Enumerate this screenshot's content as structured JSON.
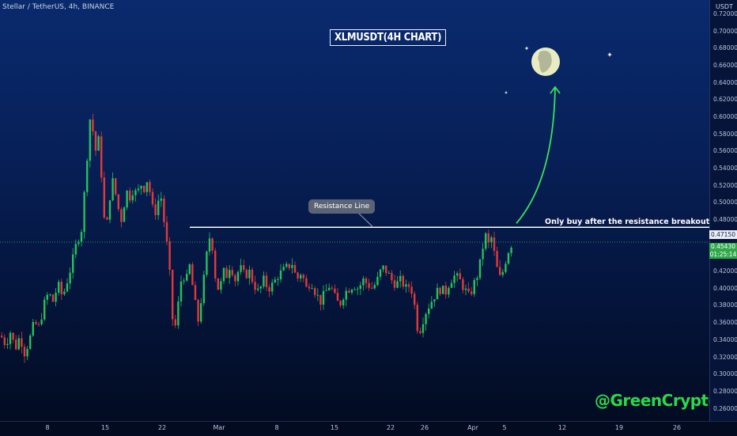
{
  "symbol_line": "Stellar / TetherUS, 4h, BINANCE",
  "chart_title": "XLMUSDT(4H CHART)",
  "resistance_label": "Resistance Line",
  "breakout_note": "Only buy after the resistance breakout",
  "watermark": "@GreenCrypto",
  "colors": {
    "up_candle": "#26c25a",
    "down_candle": "#e23a3a",
    "resistance_line": "#ffffff",
    "arrow": "#3be15a",
    "moon": "#e9ecc0"
  },
  "price_axis": {
    "unit": "USDT",
    "ticks": [
      "0.72000",
      "0.70000",
      "0.68000",
      "0.66000",
      "0.64000",
      "0.62000",
      "0.60000",
      "0.58000",
      "0.56000",
      "0.54000",
      "0.52000",
      "0.50000",
      "0.48000",
      "0.46000",
      "0.44000",
      "0.42000",
      "0.40000",
      "0.38000",
      "0.36000",
      "0.34000",
      "0.32000",
      "0.30000",
      "0.28000",
      "0.26000"
    ],
    "resistance_tag": "0.47150",
    "price_tag": "0.45430",
    "countdown_tag": "01:25:14"
  },
  "time_axis": {
    "ticks": [
      "8",
      "15",
      "22",
      "Mar",
      "8",
      "15",
      "22",
      "26",
      "Apr",
      "5",
      "12",
      "19",
      "26"
    ]
  },
  "chart_data": {
    "type": "candlestick",
    "title": "XLMUSDT(4H CHART)",
    "ylim": [
      0.26,
      0.73
    ],
    "resistance_level": 0.4715,
    "last_price": 0.4543,
    "target_level": 0.635,
    "x_labels": [
      "8",
      "15",
      "22",
      "Mar",
      "8",
      "15",
      "22",
      "26",
      "Apr",
      "5",
      "12",
      "19",
      "26"
    ],
    "close_path": [
      [
        0,
        0.345
      ],
      [
        6,
        0.335
      ],
      [
        12,
        0.35
      ],
      [
        18,
        0.33
      ],
      [
        24,
        0.345
      ],
      [
        30,
        0.325
      ],
      [
        36,
        0.34
      ],
      [
        42,
        0.36
      ],
      [
        48,
        0.355
      ],
      [
        54,
        0.38
      ],
      [
        60,
        0.395
      ],
      [
        66,
        0.385
      ],
      [
        72,
        0.405
      ],
      [
        78,
        0.39
      ],
      [
        84,
        0.41
      ],
      [
        90,
        0.43
      ],
      [
        96,
        0.455
      ],
      [
        102,
        0.47
      ],
      [
        108,
        0.54
      ],
      [
        112,
        0.6
      ],
      [
        116,
        0.585
      ],
      [
        120,
        0.56
      ],
      [
        124,
        0.575
      ],
      [
        128,
        0.52
      ],
      [
        132,
        0.46
      ],
      [
        136,
        0.49
      ],
      [
        140,
        0.53
      ],
      [
        144,
        0.515
      ],
      [
        148,
        0.495
      ],
      [
        152,
        0.48
      ],
      [
        156,
        0.5
      ],
      [
        160,
        0.515
      ],
      [
        164,
        0.505
      ],
      [
        168,
        0.52
      ],
      [
        172,
        0.505
      ],
      [
        176,
        0.525
      ],
      [
        180,
        0.515
      ],
      [
        186,
        0.53
      ],
      [
        190,
        0.5
      ],
      [
        194,
        0.485
      ],
      [
        198,
        0.5
      ],
      [
        202,
        0.51
      ],
      [
        206,
        0.48
      ],
      [
        210,
        0.45
      ],
      [
        214,
        0.41
      ],
      [
        218,
        0.35
      ],
      [
        222,
        0.36
      ],
      [
        226,
        0.4
      ],
      [
        230,
        0.42
      ],
      [
        234,
        0.405
      ],
      [
        238,
        0.43
      ],
      [
        242,
        0.405
      ],
      [
        246,
        0.38
      ],
      [
        250,
        0.36
      ],
      [
        254,
        0.395
      ],
      [
        258,
        0.42
      ],
      [
        262,
        0.455
      ],
      [
        266,
        0.465
      ],
      [
        270,
        0.42
      ],
      [
        274,
        0.4
      ],
      [
        278,
        0.405
      ],
      [
        282,
        0.42
      ],
      [
        286,
        0.415
      ],
      [
        290,
        0.43
      ],
      [
        296,
        0.41
      ],
      [
        302,
        0.425
      ],
      [
        308,
        0.415
      ],
      [
        314,
        0.42
      ],
      [
        320,
        0.405
      ],
      [
        326,
        0.395
      ],
      [
        332,
        0.41
      ],
      [
        338,
        0.4
      ],
      [
        344,
        0.405
      ],
      [
        350,
        0.415
      ],
      [
        356,
        0.42
      ],
      [
        362,
        0.425
      ],
      [
        368,
        0.43
      ],
      [
        374,
        0.41
      ],
      [
        380,
        0.42
      ],
      [
        386,
        0.4
      ],
      [
        392,
        0.41
      ],
      [
        398,
        0.395
      ],
      [
        404,
        0.385
      ],
      [
        410,
        0.395
      ],
      [
        416,
        0.405
      ],
      [
        422,
        0.39
      ],
      [
        428,
        0.38
      ],
      [
        434,
        0.395
      ],
      [
        440,
        0.4
      ],
      [
        446,
        0.405
      ],
      [
        452,
        0.4
      ],
      [
        458,
        0.41
      ],
      [
        464,
        0.405
      ],
      [
        470,
        0.4
      ],
      [
        476,
        0.41
      ],
      [
        482,
        0.425
      ],
      [
        488,
        0.42
      ],
      [
        494,
        0.41
      ],
      [
        500,
        0.405
      ],
      [
        506,
        0.41
      ],
      [
        512,
        0.4
      ],
      [
        518,
        0.405
      ],
      [
        524,
        0.375
      ],
      [
        528,
        0.345
      ],
      [
        532,
        0.36
      ],
      [
        538,
        0.375
      ],
      [
        544,
        0.385
      ],
      [
        550,
        0.395
      ],
      [
        556,
        0.4
      ],
      [
        562,
        0.395
      ],
      [
        568,
        0.41
      ],
      [
        574,
        0.415
      ],
      [
        580,
        0.41
      ],
      [
        586,
        0.4
      ],
      [
        592,
        0.39
      ],
      [
        598,
        0.405
      ],
      [
        604,
        0.42
      ],
      [
        608,
        0.44
      ],
      [
        612,
        0.465
      ],
      [
        616,
        0.45
      ],
      [
        620,
        0.46
      ],
      [
        624,
        0.44
      ],
      [
        628,
        0.42
      ],
      [
        632,
        0.41
      ],
      [
        636,
        0.425
      ],
      [
        640,
        0.44
      ],
      [
        644,
        0.45
      ],
      [
        648,
        0.455
      ]
    ]
  }
}
